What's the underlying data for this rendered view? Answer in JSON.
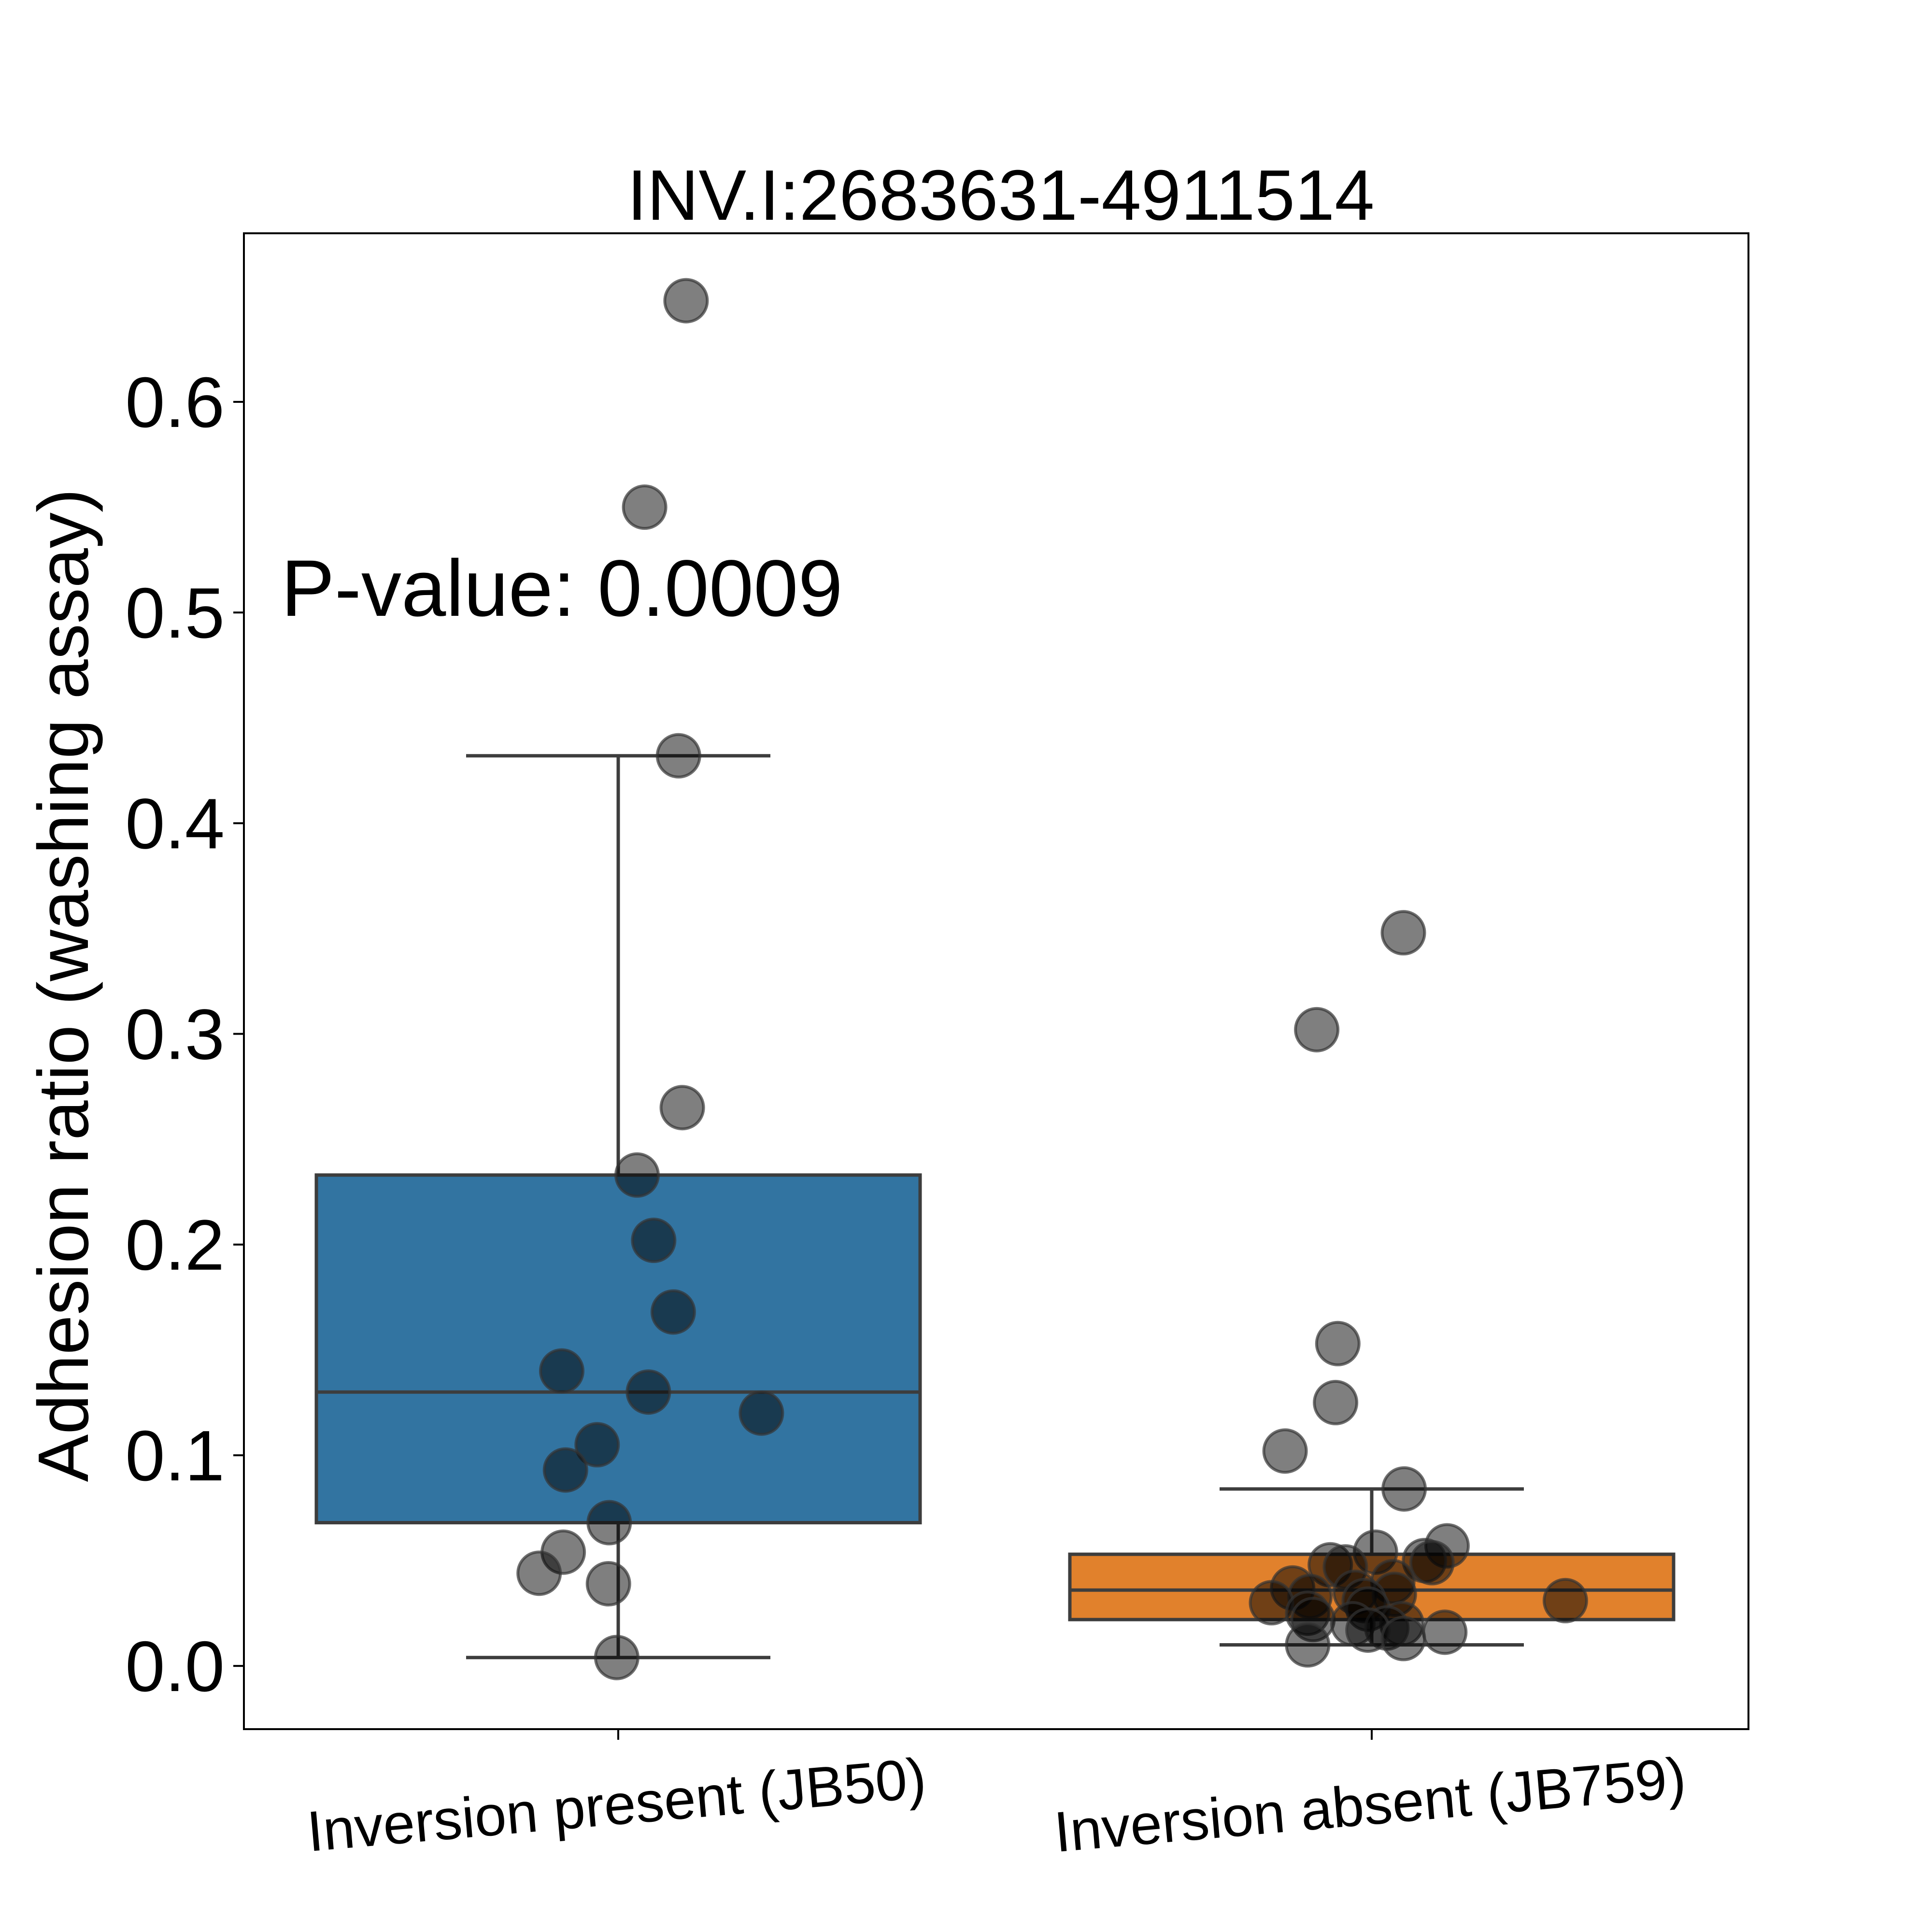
{
  "chart_data": {
    "type": "box",
    "title": "INV.I:2683631-4911514",
    "xlabel": "",
    "ylabel": "Adhesion ratio (washing assay)",
    "ylim": [
      -0.03,
      0.68
    ],
    "yticks": [
      0.0,
      0.1,
      0.2,
      0.3,
      0.4,
      0.5,
      0.6
    ],
    "ytick_labels": [
      "0.0",
      "0.1",
      "0.2",
      "0.3",
      "0.4",
      "0.5",
      "0.6"
    ],
    "grid": false,
    "annotation": "P-value: 0.0009",
    "categories": [
      "Inversion present (JB50)",
      "Inversion absent (JB759)"
    ],
    "colors": {
      "box": [
        "#3274a1",
        "#e1812c"
      ],
      "edge": "#3d3d3d",
      "point": "#000000"
    },
    "boxes": [
      {
        "q1": 0.068,
        "median": 0.13,
        "q3": 0.233,
        "whisker_low": 0.004,
        "whisker_high": 0.432
      },
      {
        "q1": 0.022,
        "median": 0.036,
        "q3": 0.053,
        "whisker_low": 0.01,
        "whisker_high": 0.084
      }
    ],
    "points": [
      [
        {
          "dx": 0.09,
          "y": 0.648
        },
        {
          "dx": 0.035,
          "y": 0.55
        },
        {
          "dx": 0.08,
          "y": 0.432
        },
        {
          "dx": 0.085,
          "y": 0.265
        },
        {
          "dx": 0.025,
          "y": 0.233
        },
        {
          "dx": 0.047,
          "y": 0.202
        },
        {
          "dx": 0.073,
          "y": 0.168
        },
        {
          "dx": -0.075,
          "y": 0.14
        },
        {
          "dx": 0.04,
          "y": 0.13
        },
        {
          "dx": 0.19,
          "y": 0.12
        },
        {
          "dx": -0.028,
          "y": 0.105
        },
        {
          "dx": -0.07,
          "y": 0.093
        },
        {
          "dx": -0.012,
          "y": 0.068
        },
        {
          "dx": -0.073,
          "y": 0.054
        },
        {
          "dx": -0.105,
          "y": 0.044
        },
        {
          "dx": -0.013,
          "y": 0.039
        },
        {
          "dx": -0.002,
          "y": 0.004
        }
      ],
      [
        {
          "dx": 0.042,
          "y": 0.348
        },
        {
          "dx": -0.073,
          "y": 0.302
        },
        {
          "dx": -0.045,
          "y": 0.153
        },
        {
          "dx": -0.048,
          "y": 0.125
        },
        {
          "dx": -0.115,
          "y": 0.102
        },
        {
          "dx": 0.043,
          "y": 0.084
        },
        {
          "dx": 0.1,
          "y": 0.057
        },
        {
          "dx": 0.005,
          "y": 0.054
        },
        {
          "dx": 0.07,
          "y": 0.05
        },
        {
          "dx": 0.08,
          "y": 0.049
        },
        {
          "dx": -0.055,
          "y": 0.048
        },
        {
          "dx": -0.035,
          "y": 0.047
        },
        {
          "dx": 0.028,
          "y": 0.04
        },
        {
          "dx": -0.105,
          "y": 0.037
        },
        {
          "dx": -0.022,
          "y": 0.035
        },
        {
          "dx": 0.03,
          "y": 0.034
        },
        {
          "dx": -0.082,
          "y": 0.033
        },
        {
          "dx": -0.01,
          "y": 0.031
        },
        {
          "dx": 0.257,
          "y": 0.031
        },
        {
          "dx": -0.133,
          "y": 0.03
        },
        {
          "dx": -0.005,
          "y": 0.027
        },
        {
          "dx": -0.085,
          "y": 0.025
        },
        {
          "dx": -0.078,
          "y": 0.022
        },
        {
          "dx": -0.025,
          "y": 0.02
        },
        {
          "dx": 0.04,
          "y": 0.02
        },
        {
          "dx": 0.02,
          "y": 0.018
        },
        {
          "dx": -0.005,
          "y": 0.017
        },
        {
          "dx": 0.097,
          "y": 0.016
        },
        {
          "dx": 0.042,
          "y": 0.013
        },
        {
          "dx": -0.085,
          "y": 0.01
        }
      ]
    ]
  }
}
